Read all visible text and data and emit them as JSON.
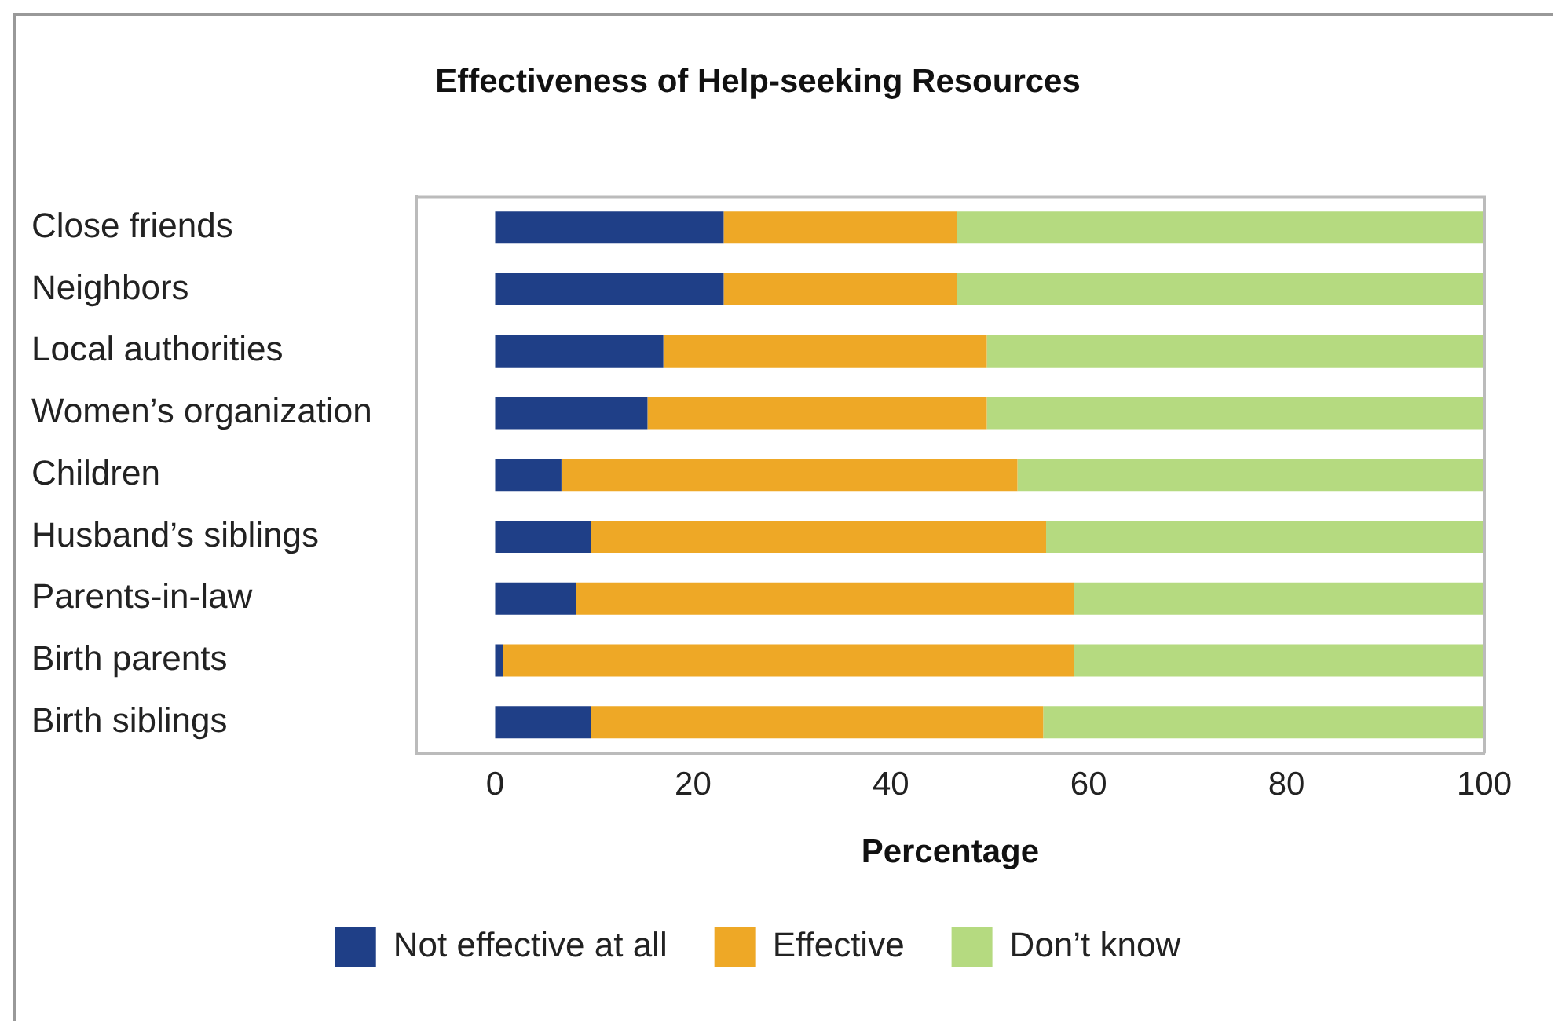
{
  "chart_data": {
    "type": "bar",
    "orientation": "horizontal",
    "stacked": true,
    "title": "Effectiveness of Help-seeking Resources",
    "xlabel": "Percentage",
    "categories": [
      "Close friends",
      "Neighbors",
      "Local authorities",
      "Women’s organization",
      "Children",
      "Husband’s siblings",
      "Parents-in-law",
      "Birth parents",
      "Birth siblings"
    ],
    "series": [
      {
        "name": "Not effective at all",
        "color": "#1f3f87",
        "values": [
          23.1,
          23.1,
          17.0,
          15.4,
          6.7,
          9.7,
          8.2,
          0.8,
          9.7
        ]
      },
      {
        "name": "Effective",
        "color": "#eea826",
        "values": [
          23.6,
          23.6,
          32.7,
          34.3,
          46.1,
          46.0,
          50.3,
          57.7,
          45.7
        ]
      },
      {
        "name": "Don’t know",
        "color": "#b5da80",
        "values": [
          53.3,
          53.3,
          50.3,
          50.3,
          47.2,
          44.3,
          41.5,
          41.5,
          44.6
        ]
      }
    ],
    "xlim": [
      -8,
      100
    ],
    "xticks": [
      0,
      20,
      40,
      60,
      80,
      100
    ],
    "grid": false,
    "legend": "bottom"
  }
}
